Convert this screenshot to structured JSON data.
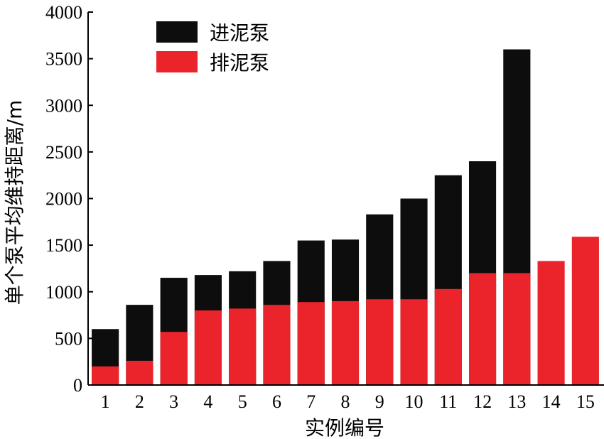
{
  "chart_data": {
    "type": "bar",
    "stacked": "overlay",
    "categories": [
      "1",
      "2",
      "3",
      "4",
      "5",
      "6",
      "7",
      "8",
      "9",
      "10",
      "11",
      "12",
      "13",
      "14",
      "15"
    ],
    "series": [
      {
        "name": "进泥泵",
        "color": "#0d0d0d",
        "values": [
          600,
          860,
          1150,
          1180,
          1220,
          1330,
          1550,
          1560,
          1830,
          2000,
          2250,
          2400,
          3600,
          null,
          null
        ]
      },
      {
        "name": "排泥泵",
        "color": "#ea242a",
        "values": [
          200,
          260,
          570,
          800,
          820,
          860,
          890,
          900,
          920,
          920,
          1030,
          1200,
          1200,
          1330,
          1590
        ]
      }
    ],
    "ylim": [
      0,
      4000
    ],
    "yticks": [
      0,
      500,
      1000,
      1500,
      2000,
      2500,
      3000,
      3500,
      4000
    ],
    "xlabel": "实例编号",
    "ylabel": "单个泵平均维持距离/m",
    "legend": "top-left",
    "grid": false
  }
}
